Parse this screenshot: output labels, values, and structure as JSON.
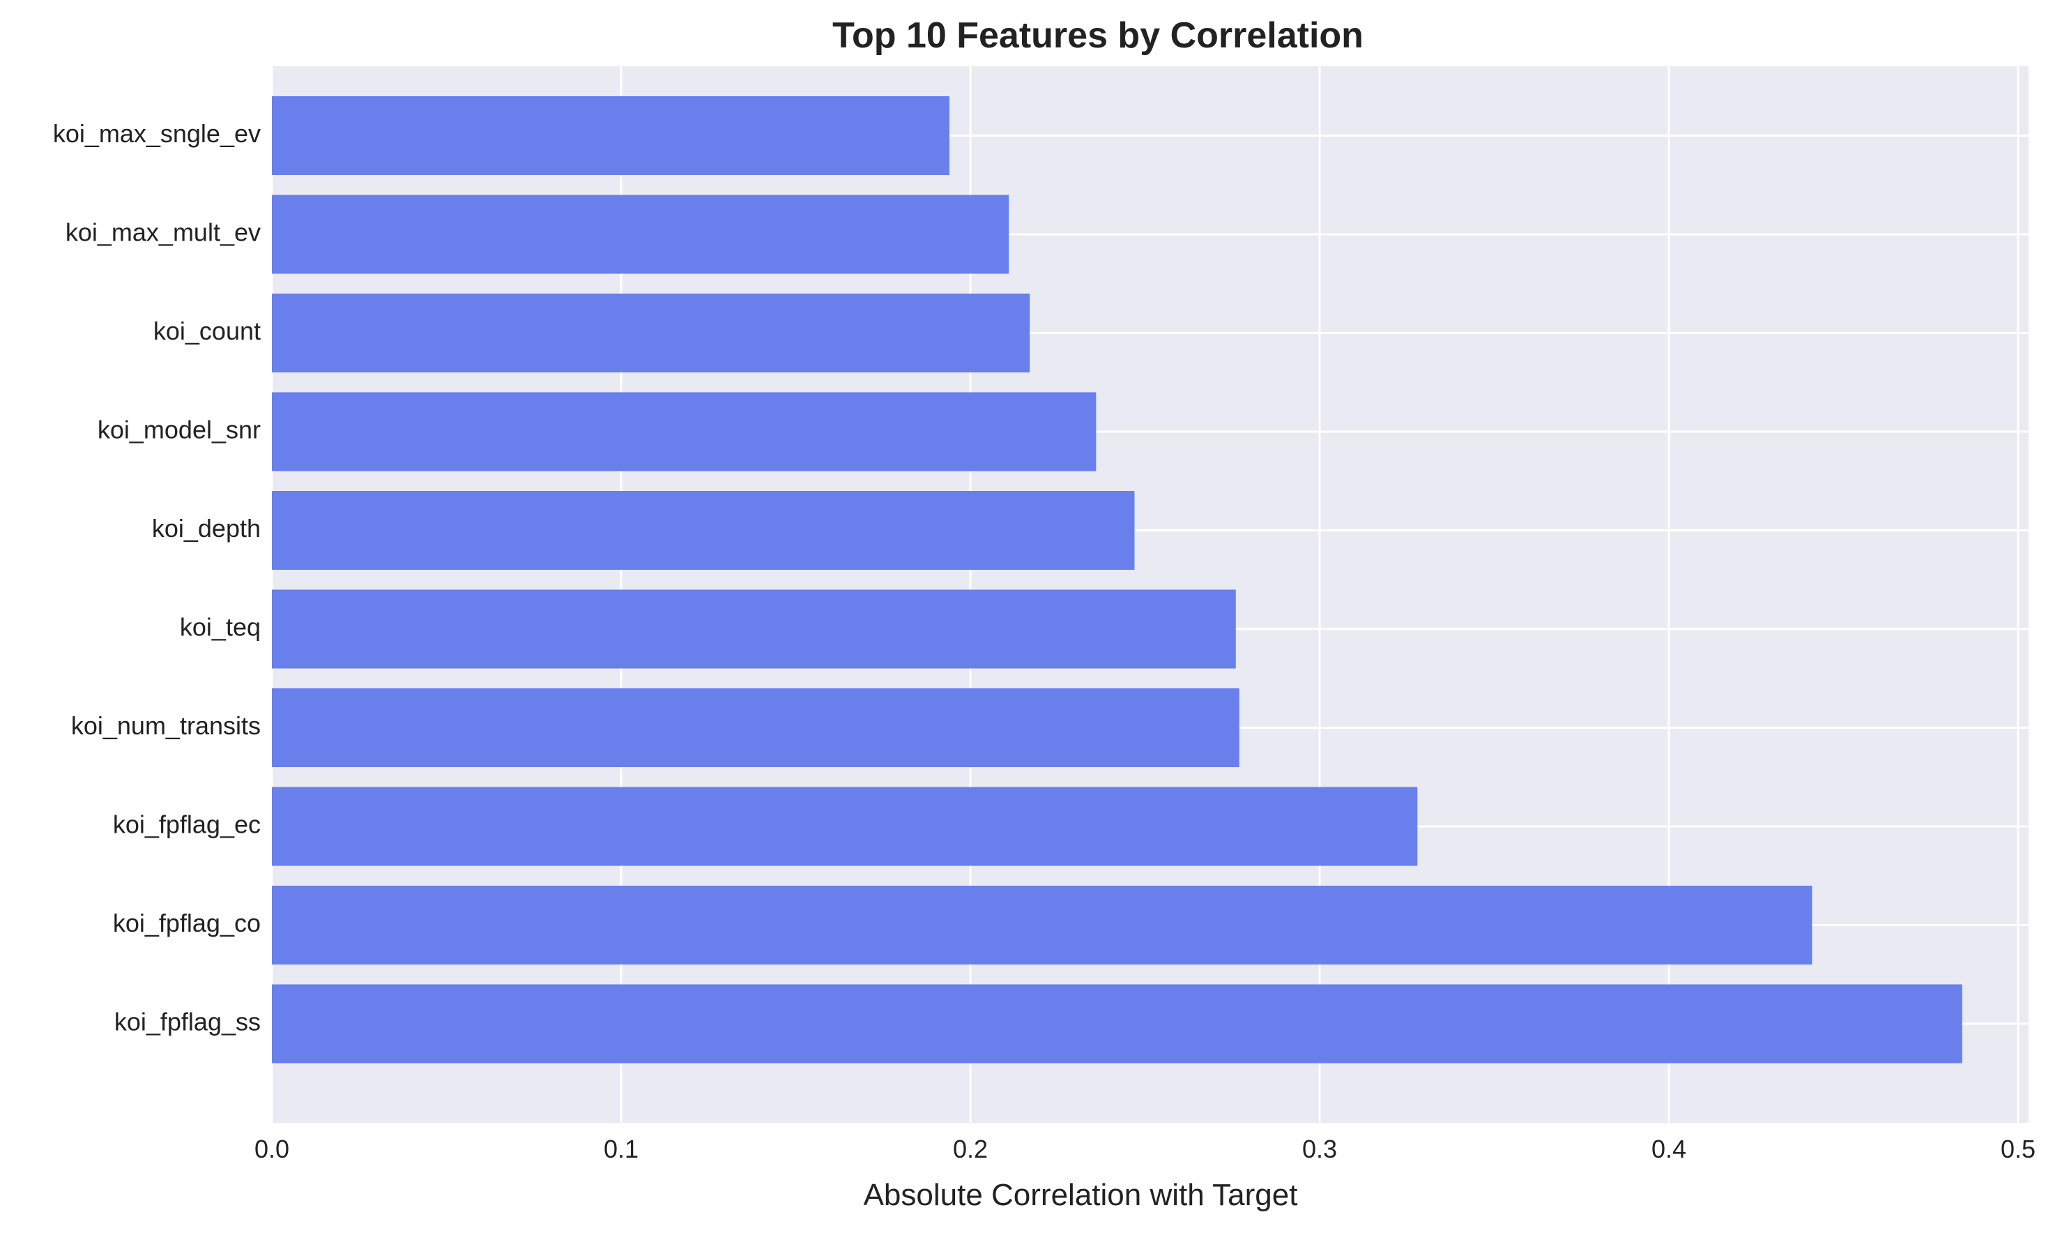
{
  "chart_data": {
    "type": "bar",
    "orientation": "horizontal",
    "title": "Top 10 Features by Correlation",
    "xlabel": "Absolute Correlation with Target",
    "ylabel": "",
    "categories": [
      "koi_max_sngle_ev",
      "koi_max_mult_ev",
      "koi_count",
      "koi_model_snr",
      "koi_depth",
      "koi_teq",
      "koi_num_transits",
      "koi_fpflag_ec",
      "koi_fpflag_co",
      "koi_fpflag_ss"
    ],
    "values": [
      0.194,
      0.211,
      0.217,
      0.236,
      0.247,
      0.276,
      0.277,
      0.328,
      0.441,
      0.484
    ],
    "xlim": [
      0,
      0.503
    ],
    "xticks": [
      0.0,
      0.1,
      0.2,
      0.3,
      0.4,
      0.5
    ],
    "xtick_labels": [
      "0.0",
      "0.1",
      "0.2",
      "0.3",
      "0.4",
      "0.5"
    ],
    "grid": true,
    "bar_color": "#687fec",
    "background_color": "#eaeaf2",
    "grid_color": "#ffffff"
  }
}
